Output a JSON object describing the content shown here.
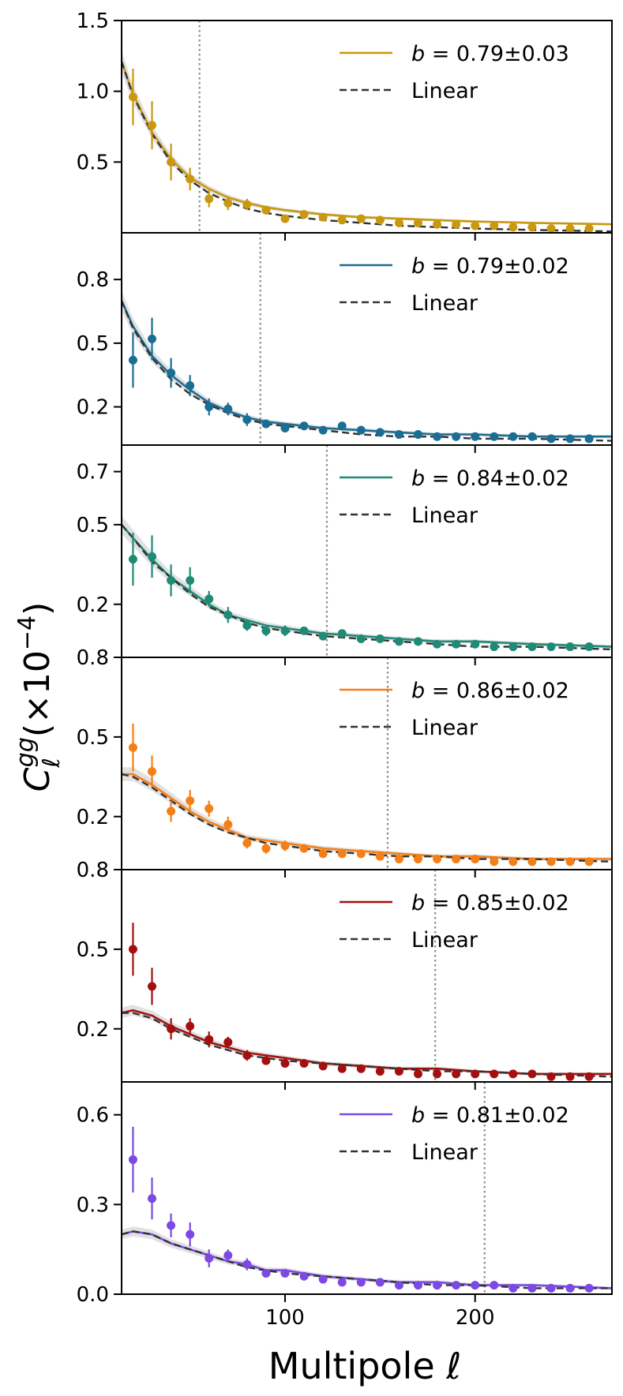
{
  "figure": {
    "xlabel": "Multipole ℓ",
    "ylabel_symbol": "C",
    "ylabel_sup": "gg",
    "ylabel_sub": "ℓ",
    "ylabel_factor": "(×10",
    "ylabel_exp": "−4",
    "ylabel_close": ")"
  },
  "chart_data": [
    {
      "type": "line",
      "panel": 1,
      "color": "#c9980f",
      "legend": [
        {
          "label": "b = 0.79±0.03",
          "b_value": "0.79±0.03",
          "style": "solid"
        },
        {
          "label": "Linear",
          "style": "dashed"
        }
      ],
      "xlim": [
        14,
        272
      ],
      "ylim": [
        0.0,
        1.5
      ],
      "yticks": [
        0.5,
        1.0,
        1.5
      ],
      "ytick_labels": [
        "0.5",
        "1.0",
        "1.5"
      ],
      "xticks": [
        100,
        200
      ],
      "xtick_labels": [
        "100",
        "200"
      ],
      "scale_cut": 55,
      "points": {
        "x": [
          20,
          30,
          40,
          50,
          60,
          70,
          80,
          90,
          100,
          110,
          120,
          130,
          140,
          150,
          160,
          170,
          180,
          190,
          200,
          210,
          220,
          230,
          240,
          250,
          260
        ],
        "y": [
          0.96,
          0.76,
          0.5,
          0.38,
          0.24,
          0.21,
          0.2,
          0.16,
          0.1,
          0.13,
          0.11,
          0.09,
          0.1,
          0.09,
          0.07,
          0.07,
          0.06,
          0.06,
          0.05,
          0.05,
          0.04,
          0.04,
          0.03,
          0.03,
          0.03
        ],
        "err": [
          0.2,
          0.17,
          0.13,
          0.08,
          0.06,
          0.05,
          0.04,
          0.03,
          0.03,
          0.02,
          0.02,
          0.02,
          0.02,
          0.02,
          0.02,
          0.02,
          0.01,
          0.01,
          0.01,
          0.01,
          0.01,
          0.01,
          0.01,
          0.01,
          0.01
        ]
      },
      "model": {
        "x": [
          14,
          20,
          30,
          40,
          50,
          60,
          70,
          80,
          90,
          100,
          120,
          140,
          160,
          180,
          200,
          230,
          272
        ],
        "y": [
          1.21,
          0.98,
          0.71,
          0.52,
          0.39,
          0.31,
          0.25,
          0.21,
          0.18,
          0.16,
          0.13,
          0.11,
          0.1,
          0.09,
          0.08,
          0.07,
          0.06
        ]
      },
      "linear": {
        "x": [
          14,
          20,
          30,
          40,
          50,
          60,
          70,
          80,
          90,
          100,
          120,
          140,
          160,
          180,
          200,
          230,
          272
        ],
        "y": [
          1.21,
          0.97,
          0.7,
          0.5,
          0.37,
          0.28,
          0.22,
          0.17,
          0.14,
          0.12,
          0.09,
          0.07,
          0.05,
          0.04,
          0.03,
          0.02,
          0.01
        ]
      }
    },
    {
      "type": "line",
      "panel": 2,
      "color": "#1a6e94",
      "legend": [
        {
          "label": "b = 0.79±0.02",
          "b_value": "0.79±0.02",
          "style": "solid"
        },
        {
          "label": "Linear",
          "style": "dashed"
        }
      ],
      "xlim": [
        14,
        272
      ],
      "ylim": [
        0.02,
        1.02
      ],
      "yticks": [
        0.2,
        0.5,
        0.8
      ],
      "ytick_labels": [
        "0.2",
        "0.5",
        "0.8"
      ],
      "xticks": [
        100,
        200
      ],
      "xtick_labels": [
        "100",
        "200"
      ],
      "scale_cut": 87,
      "points": {
        "x": [
          20,
          30,
          40,
          50,
          60,
          70,
          80,
          90,
          100,
          110,
          120,
          130,
          140,
          150,
          160,
          170,
          180,
          190,
          200,
          210,
          220,
          230,
          240,
          250,
          260
        ],
        "y": [
          0.42,
          0.52,
          0.36,
          0.3,
          0.2,
          0.19,
          0.14,
          0.12,
          0.1,
          0.11,
          0.09,
          0.11,
          0.09,
          0.08,
          0.07,
          0.07,
          0.06,
          0.06,
          0.06,
          0.06,
          0.06,
          0.06,
          0.05,
          0.05,
          0.05
        ],
        "err": [
          0.13,
          0.1,
          0.07,
          0.05,
          0.04,
          0.03,
          0.03,
          0.02,
          0.02,
          0.02,
          0.02,
          0.02,
          0.02,
          0.01,
          0.01,
          0.01,
          0.01,
          0.01,
          0.01,
          0.01,
          0.01,
          0.01,
          0.01,
          0.01,
          0.01
        ]
      },
      "model": {
        "x": [
          14,
          20,
          30,
          40,
          50,
          60,
          70,
          80,
          90,
          100,
          120,
          140,
          160,
          180,
          200,
          230,
          272
        ],
        "y": [
          0.7,
          0.58,
          0.44,
          0.35,
          0.28,
          0.22,
          0.18,
          0.15,
          0.13,
          0.12,
          0.1,
          0.09,
          0.08,
          0.07,
          0.07,
          0.06,
          0.06
        ]
      },
      "linear": {
        "x": [
          14,
          20,
          30,
          40,
          50,
          60,
          70,
          80,
          90,
          100,
          120,
          140,
          160,
          180,
          200,
          230,
          272
        ],
        "y": [
          0.7,
          0.57,
          0.43,
          0.33,
          0.26,
          0.21,
          0.17,
          0.14,
          0.12,
          0.11,
          0.09,
          0.07,
          0.06,
          0.06,
          0.05,
          0.05,
          0.04
        ]
      }
    },
    {
      "type": "line",
      "panel": 3,
      "color": "#1f8a76",
      "legend": [
        {
          "label": "b = 0.84±0.02",
          "b_value": "0.84±0.02",
          "style": "solid"
        },
        {
          "label": "Linear",
          "style": "dashed"
        }
      ],
      "xlim": [
        14,
        272
      ],
      "ylim": [
        0.0,
        0.8
      ],
      "yticks": [
        0.2,
        0.5,
        0.7
      ],
      "ytick_labels": [
        "0.2",
        "0.5",
        "0.7"
      ],
      "xticks": [
        100,
        200
      ],
      "xtick_labels": [
        "100",
        "200"
      ],
      "scale_cut": 122,
      "points": {
        "x": [
          20,
          30,
          40,
          50,
          60,
          70,
          80,
          90,
          100,
          110,
          120,
          130,
          140,
          150,
          160,
          170,
          180,
          190,
          200,
          210,
          220,
          230,
          240,
          250,
          260
        ],
        "y": [
          0.37,
          0.38,
          0.29,
          0.29,
          0.22,
          0.16,
          0.12,
          0.1,
          0.1,
          0.1,
          0.08,
          0.09,
          0.07,
          0.07,
          0.06,
          0.06,
          0.05,
          0.05,
          0.05,
          0.04,
          0.04,
          0.04,
          0.04,
          0.04,
          0.04
        ],
        "err": [
          0.1,
          0.08,
          0.06,
          0.05,
          0.03,
          0.03,
          0.02,
          0.02,
          0.02,
          0.01,
          0.01,
          0.01,
          0.01,
          0.01,
          0.01,
          0.01,
          0.01,
          0.01,
          0.01,
          0.01,
          0.01,
          0.01,
          0.01,
          0.01,
          0.01
        ]
      },
      "model": {
        "x": [
          14,
          20,
          30,
          40,
          50,
          60,
          70,
          80,
          90,
          100,
          120,
          140,
          160,
          180,
          200,
          230,
          272
        ],
        "y": [
          0.5,
          0.45,
          0.37,
          0.3,
          0.25,
          0.2,
          0.16,
          0.14,
          0.12,
          0.11,
          0.09,
          0.08,
          0.07,
          0.06,
          0.06,
          0.05,
          0.04
        ]
      },
      "linear": {
        "x": [
          14,
          20,
          30,
          40,
          50,
          60,
          70,
          80,
          90,
          100,
          120,
          140,
          160,
          180,
          200,
          230,
          272
        ],
        "y": [
          0.5,
          0.45,
          0.36,
          0.3,
          0.24,
          0.19,
          0.16,
          0.13,
          0.11,
          0.1,
          0.08,
          0.07,
          0.06,
          0.05,
          0.04,
          0.04,
          0.03
        ]
      }
    },
    {
      "type": "line",
      "panel": 4,
      "color": "#f57f17",
      "legend": [
        {
          "label": "b = 0.86±0.02",
          "b_value": "0.86±0.02",
          "style": "solid"
        },
        {
          "label": "Linear",
          "style": "dashed"
        }
      ],
      "xlim": [
        14,
        272
      ],
      "ylim": [
        0.0,
        0.8
      ],
      "yticks": [
        0.2,
        0.5,
        0.8
      ],
      "ytick_labels": [
        "0.2",
        "0.5",
        "0.8"
      ],
      "xticks": [
        100,
        200
      ],
      "xtick_labels": [
        "100",
        "200"
      ],
      "scale_cut": 154,
      "points": {
        "x": [
          20,
          30,
          40,
          50,
          60,
          70,
          80,
          90,
          100,
          110,
          120,
          130,
          140,
          150,
          160,
          170,
          180,
          190,
          200,
          210,
          220,
          230,
          240,
          250,
          260
        ],
        "y": [
          0.46,
          0.37,
          0.22,
          0.26,
          0.23,
          0.17,
          0.1,
          0.08,
          0.09,
          0.08,
          0.06,
          0.06,
          0.06,
          0.05,
          0.04,
          0.04,
          0.04,
          0.04,
          0.04,
          0.03,
          0.03,
          0.03,
          0.03,
          0.03,
          0.03
        ],
        "err": [
          0.09,
          0.06,
          0.04,
          0.04,
          0.03,
          0.03,
          0.02,
          0.02,
          0.02,
          0.01,
          0.01,
          0.01,
          0.01,
          0.01,
          0.01,
          0.01,
          0.01,
          0.01,
          0.01,
          0.01,
          0.01,
          0.01,
          0.01,
          0.01,
          0.01
        ]
      },
      "model": {
        "x": [
          14,
          20,
          30,
          40,
          50,
          60,
          70,
          80,
          90,
          100,
          120,
          140,
          160,
          180,
          200,
          230,
          272
        ],
        "y": [
          0.36,
          0.36,
          0.32,
          0.27,
          0.22,
          0.18,
          0.15,
          0.12,
          0.11,
          0.1,
          0.08,
          0.07,
          0.06,
          0.05,
          0.05,
          0.04,
          0.04
        ]
      },
      "linear": {
        "x": [
          14,
          20,
          30,
          40,
          50,
          60,
          70,
          80,
          90,
          100,
          120,
          140,
          160,
          180,
          200,
          230,
          272
        ],
        "y": [
          0.36,
          0.35,
          0.31,
          0.26,
          0.21,
          0.17,
          0.14,
          0.12,
          0.1,
          0.09,
          0.07,
          0.06,
          0.05,
          0.05,
          0.04,
          0.04,
          0.03
        ]
      }
    },
    {
      "type": "line",
      "panel": 5,
      "color": "#a31010",
      "legend": [
        {
          "label": "b = 0.85±0.02",
          "b_value": "0.85±0.02",
          "style": "solid"
        },
        {
          "label": "Linear",
          "style": "dashed"
        }
      ],
      "xlim": [
        14,
        272
      ],
      "ylim": [
        0.0,
        0.8
      ],
      "yticks": [
        0.2,
        0.5,
        0.8
      ],
      "ytick_labels": [
        "0.2",
        "0.5",
        "0.8"
      ],
      "xticks": [
        100,
        200
      ],
      "xtick_labels": [
        "100",
        "200"
      ],
      "scale_cut": 179,
      "points": {
        "x": [
          20,
          30,
          40,
          50,
          60,
          70,
          80,
          90,
          100,
          110,
          120,
          130,
          140,
          150,
          160,
          170,
          180,
          190,
          200,
          210,
          220,
          230,
          240,
          250,
          260
        ],
        "y": [
          0.5,
          0.36,
          0.2,
          0.21,
          0.16,
          0.15,
          0.1,
          0.08,
          0.07,
          0.07,
          0.06,
          0.05,
          0.05,
          0.04,
          0.04,
          0.03,
          0.03,
          0.03,
          0.03,
          0.03,
          0.03,
          0.03,
          0.02,
          0.02,
          0.02
        ],
        "err": [
          0.1,
          0.07,
          0.04,
          0.03,
          0.03,
          0.02,
          0.02,
          0.01,
          0.01,
          0.01,
          0.01,
          0.01,
          0.01,
          0.01,
          0.01,
          0.01,
          0.01,
          0.01,
          0.01,
          0.01,
          0.01,
          0.01,
          0.01,
          0.01,
          0.01
        ]
      },
      "model": {
        "x": [
          14,
          20,
          30,
          40,
          50,
          60,
          70,
          80,
          90,
          100,
          120,
          140,
          160,
          180,
          200,
          230,
          272
        ],
        "y": [
          0.26,
          0.27,
          0.25,
          0.21,
          0.18,
          0.15,
          0.13,
          0.11,
          0.1,
          0.09,
          0.07,
          0.06,
          0.05,
          0.05,
          0.04,
          0.03,
          0.03
        ]
      },
      "linear": {
        "x": [
          14,
          20,
          30,
          40,
          50,
          60,
          70,
          80,
          90,
          100,
          120,
          140,
          160,
          180,
          200,
          230,
          272
        ],
        "y": [
          0.26,
          0.26,
          0.24,
          0.2,
          0.17,
          0.14,
          0.12,
          0.1,
          0.09,
          0.08,
          0.07,
          0.06,
          0.05,
          0.04,
          0.04,
          0.03,
          0.02
        ]
      }
    },
    {
      "type": "line",
      "panel": 6,
      "color": "#7b49e3",
      "legend": [
        {
          "label": "b = 0.81±0.02",
          "b_value": "0.81±0.02",
          "style": "solid"
        },
        {
          "label": "Linear",
          "style": "dashed"
        }
      ],
      "xlim": [
        14,
        272
      ],
      "ylim": [
        0.0,
        0.71
      ],
      "yticks": [
        0.0,
        0.3,
        0.6
      ],
      "ytick_labels": [
        "0.0",
        "0.3",
        "0.6"
      ],
      "xticks": [
        100,
        200
      ],
      "xtick_labels": [
        "100",
        "200"
      ],
      "scale_cut": 205,
      "points": {
        "x": [
          20,
          30,
          40,
          50,
          60,
          70,
          80,
          90,
          100,
          110,
          120,
          130,
          140,
          150,
          160,
          170,
          180,
          190,
          200,
          210,
          220,
          230,
          240,
          250,
          260
        ],
        "y": [
          0.45,
          0.32,
          0.23,
          0.2,
          0.12,
          0.13,
          0.1,
          0.07,
          0.07,
          0.06,
          0.05,
          0.04,
          0.04,
          0.04,
          0.03,
          0.03,
          0.03,
          0.03,
          0.03,
          0.03,
          0.02,
          0.02,
          0.02,
          0.02,
          0.02
        ],
        "err": [
          0.11,
          0.07,
          0.04,
          0.04,
          0.03,
          0.02,
          0.02,
          0.01,
          0.01,
          0.01,
          0.01,
          0.01,
          0.01,
          0.01,
          0.01,
          0.01,
          0.01,
          0.01,
          0.01,
          0.01,
          0.01,
          0.01,
          0.01,
          0.01,
          0.01
        ]
      },
      "model": {
        "x": [
          14,
          20,
          30,
          40,
          50,
          60,
          70,
          80,
          90,
          100,
          120,
          140,
          160,
          180,
          200,
          230,
          272
        ],
        "y": [
          0.2,
          0.21,
          0.2,
          0.17,
          0.15,
          0.13,
          0.11,
          0.1,
          0.08,
          0.08,
          0.06,
          0.05,
          0.04,
          0.04,
          0.03,
          0.03,
          0.02
        ]
      },
      "linear": {
        "x": [
          14,
          20,
          30,
          40,
          50,
          60,
          70,
          80,
          90,
          100,
          120,
          140,
          160,
          180,
          200,
          230,
          272
        ],
        "y": [
          0.2,
          0.21,
          0.2,
          0.17,
          0.15,
          0.13,
          0.11,
          0.09,
          0.08,
          0.07,
          0.06,
          0.05,
          0.04,
          0.03,
          0.03,
          0.02,
          0.02
        ]
      }
    }
  ]
}
